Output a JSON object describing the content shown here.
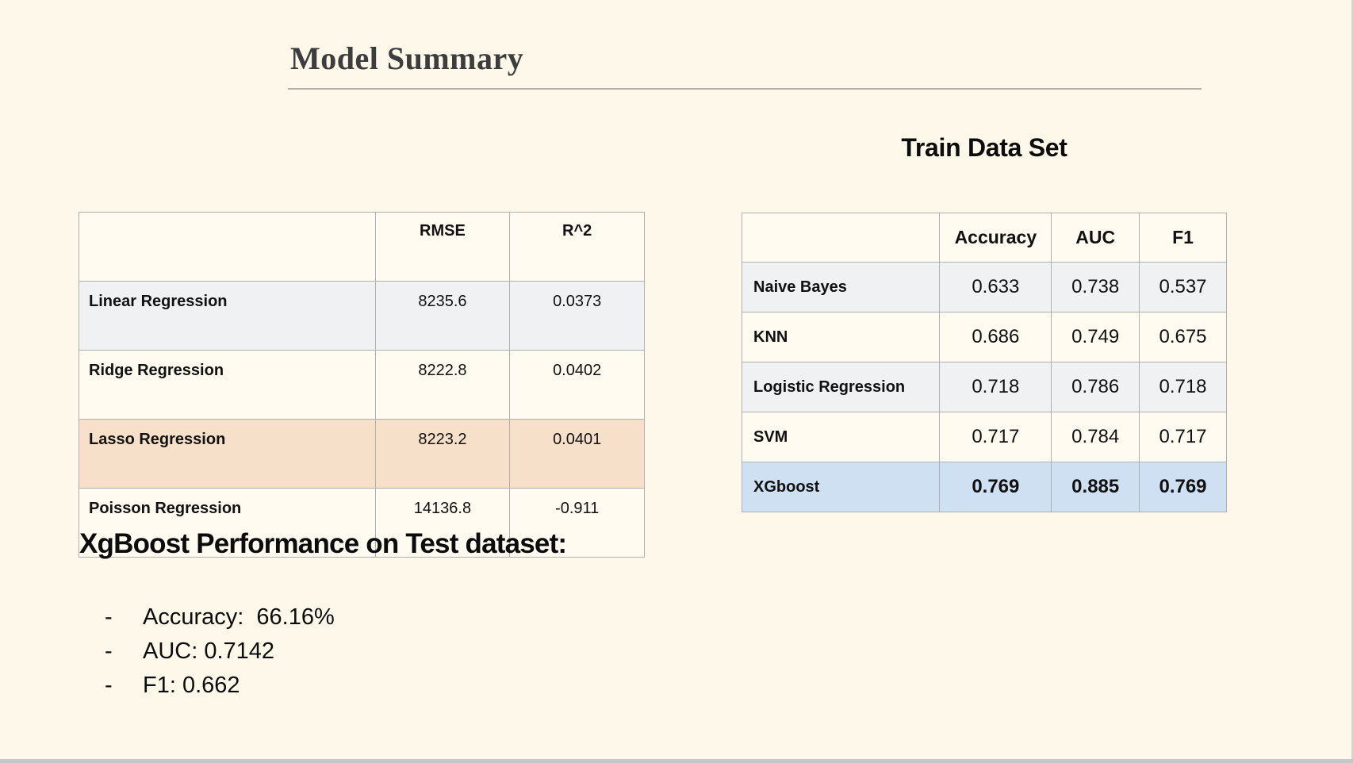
{
  "slide": {
    "title": "Model Summary"
  },
  "regression_table": {
    "columns": [
      "",
      "RMSE",
      "R^2"
    ],
    "rows": [
      {
        "model": "Linear Regression",
        "rmse": "8235.6",
        "r2": "0.0373",
        "highlight": "gray"
      },
      {
        "model": "Ridge Regression",
        "rmse": "8222.8",
        "r2": "0.0402",
        "highlight": "none"
      },
      {
        "model": "Lasso Regression",
        "rmse": "8223.2",
        "r2": "0.0401",
        "highlight": "peach"
      },
      {
        "model": "Poisson Regression",
        "rmse": "14136.8",
        "r2": "-0.911",
        "highlight": "none"
      }
    ]
  },
  "train_table": {
    "title": "Train Data Set",
    "columns": [
      "",
      "Accuracy",
      "AUC",
      "F1"
    ],
    "rows": [
      {
        "model": "Naive Bayes",
        "accuracy": "0.633",
        "auc": "0.738",
        "f1": "0.537",
        "highlight": "gray",
        "bold": false
      },
      {
        "model": "KNN",
        "accuracy": "0.686",
        "auc": "0.749",
        "f1": "0.675",
        "highlight": "none",
        "bold": false
      },
      {
        "model": "Logistic Regression",
        "accuracy": "0.718",
        "auc": "0.786",
        "f1": "0.718",
        "highlight": "gray",
        "bold": false
      },
      {
        "model": "SVM",
        "accuracy": "0.717",
        "auc": "0.784",
        "f1": "0.717",
        "highlight": "none",
        "bold": false
      },
      {
        "model": "XGboost",
        "accuracy": "0.769",
        "auc": "0.885",
        "f1": "0.769",
        "highlight": "blue",
        "bold": true
      }
    ]
  },
  "test_performance": {
    "heading": "XgBoost Performance on Test dataset:",
    "bullet_marker": "-",
    "bullets": [
      "Accuracy:  66.16%",
      "AUC: 0.7142",
      "F1: 0.662"
    ]
  },
  "colors": {
    "background": "#fdf8e9",
    "row_gray": "#f0f1f2",
    "row_peach": "#f6e0ca",
    "row_blue": "#cfe0f2",
    "table_border": "#b0b0b0",
    "title_text": "#3d3d3d",
    "footer_bar": "#c6c6c6"
  }
}
